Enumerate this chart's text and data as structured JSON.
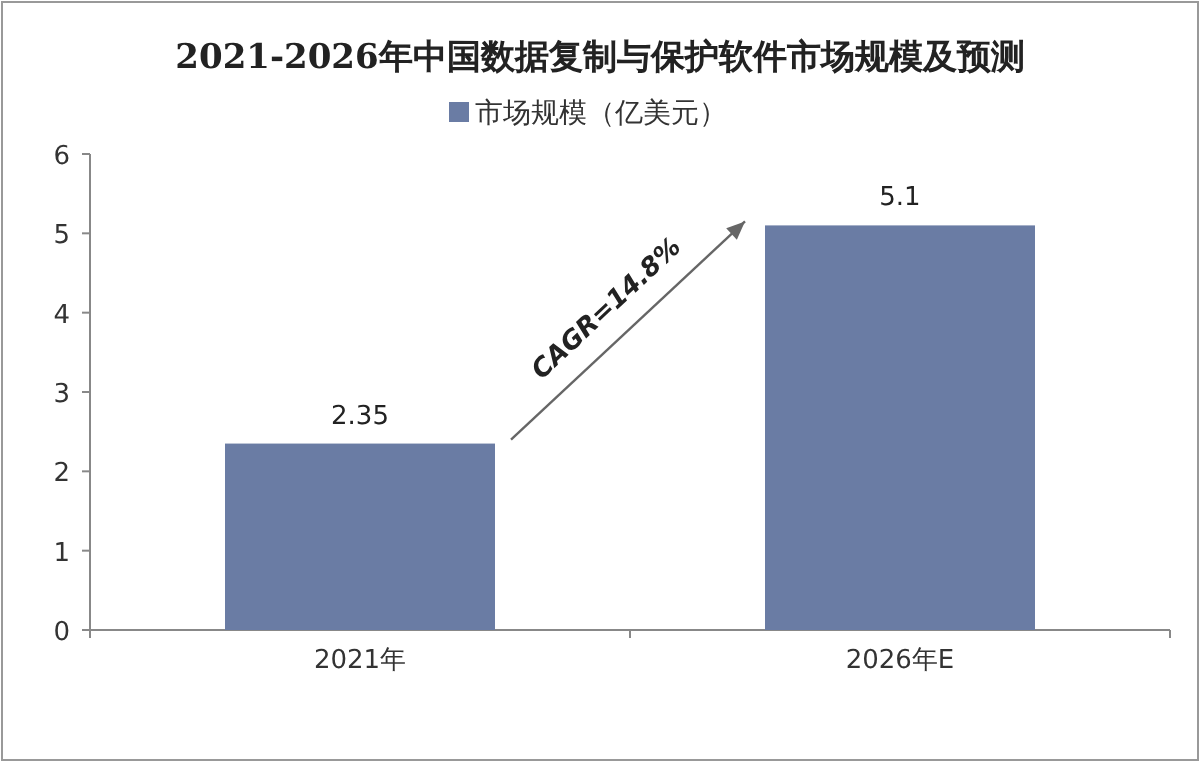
{
  "chart_data": {
    "type": "bar",
    "title": "2021-2026年中国数据复制与保护软件市场规模及预测",
    "categories": [
      "2021年",
      "2026年E"
    ],
    "series": [
      {
        "name": "市场规模（亿美元）",
        "color": "#6a7ca4",
        "values": [
          2.35,
          5.1
        ]
      }
    ],
    "ylim": [
      0,
      6
    ],
    "yticks": [
      0,
      1,
      2,
      3,
      4,
      5,
      6
    ],
    "data_labels": true,
    "legend": "top",
    "annotations": [
      "CAGR=14.8%"
    ]
  }
}
